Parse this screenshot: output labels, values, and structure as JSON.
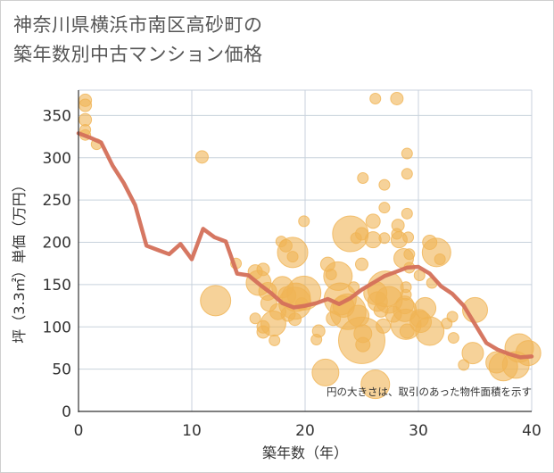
{
  "chart_data": {
    "type": "scatter",
    "title": "神奈川県横浜市南区高砂町の\n築年数別中古マンション価格",
    "xlabel": "築年数（年）",
    "ylabel": "坪（3.3㎡）単価（万円）",
    "xlim": [
      0,
      40
    ],
    "ylim": [
      0,
      380
    ],
    "xticks": [
      0,
      10,
      20,
      30,
      40
    ],
    "yticks": [
      0,
      50,
      100,
      150,
      200,
      250,
      300,
      350
    ],
    "grid": true,
    "note": "円の大きさは、取引のあった物件面積を示す",
    "colors": {
      "bubble": "#f0b455",
      "trend": "#d4705a",
      "grid": "#c8d2dc",
      "axis": "#333333"
    },
    "points": [
      {
        "x": 0.6,
        "y": 368,
        "s": 7
      },
      {
        "x": 0.6,
        "y": 362,
        "s": 7
      },
      {
        "x": 0.6,
        "y": 345,
        "s": 7
      },
      {
        "x": 0.6,
        "y": 333,
        "s": 6
      },
      {
        "x": 0.6,
        "y": 327,
        "s": 6
      },
      {
        "x": 1.6,
        "y": 316,
        "s": 6
      },
      {
        "x": 10.9,
        "y": 301,
        "s": 7
      },
      {
        "x": 12.1,
        "y": 131,
        "s": 17
      },
      {
        "x": 13.9,
        "y": 175,
        "s": 6
      },
      {
        "x": 15.6,
        "y": 165,
        "s": 8
      },
      {
        "x": 15.6,
        "y": 110,
        "s": 6
      },
      {
        "x": 15.9,
        "y": 152,
        "s": 14
      },
      {
        "x": 16.3,
        "y": 168,
        "s": 7
      },
      {
        "x": 16.3,
        "y": 100,
        "s": 7
      },
      {
        "x": 16.3,
        "y": 94,
        "s": 7
      },
      {
        "x": 16.7,
        "y": 142,
        "s": 10
      },
      {
        "x": 16.8,
        "y": 128,
        "s": 9
      },
      {
        "x": 17.2,
        "y": 104,
        "s": 14
      },
      {
        "x": 17.6,
        "y": 118,
        "s": 9
      },
      {
        "x": 17.3,
        "y": 84,
        "s": 6
      },
      {
        "x": 17.9,
        "y": 201,
        "s": 6
      },
      {
        "x": 18.3,
        "y": 196,
        "s": 7
      },
      {
        "x": 18.0,
        "y": 147,
        "s": 12
      },
      {
        "x": 18.4,
        "y": 137,
        "s": 10
      },
      {
        "x": 18.5,
        "y": 115,
        "s": 8
      },
      {
        "x": 18.9,
        "y": 188,
        "s": 17
      },
      {
        "x": 18.9,
        "y": 183,
        "s": 6
      },
      {
        "x": 19.2,
        "y": 135,
        "s": 16
      },
      {
        "x": 19.1,
        "y": 128,
        "s": 18
      },
      {
        "x": 19.7,
        "y": 127,
        "s": 7
      },
      {
        "x": 19.1,
        "y": 109,
        "s": 7
      },
      {
        "x": 19.9,
        "y": 140,
        "s": 19
      },
      {
        "x": 19.9,
        "y": 225,
        "s": 6
      },
      {
        "x": 21.0,
        "y": 85,
        "s": 6
      },
      {
        "x": 21.2,
        "y": 95,
        "s": 7
      },
      {
        "x": 21.8,
        "y": 46,
        "s": 15
      },
      {
        "x": 22.0,
        "y": 174,
        "s": 8
      },
      {
        "x": 22.3,
        "y": 162,
        "s": 6
      },
      {
        "x": 22.5,
        "y": 110,
        "s": 8
      },
      {
        "x": 22.9,
        "y": 160,
        "s": 16
      },
      {
        "x": 23.1,
        "y": 133,
        "s": 18
      },
      {
        "x": 23.4,
        "y": 124,
        "s": 12
      },
      {
        "x": 23.8,
        "y": 118,
        "s": 20
      },
      {
        "x": 24.0,
        "y": 210,
        "s": 20
      },
      {
        "x": 24.3,
        "y": 147,
        "s": 6
      },
      {
        "x": 24.5,
        "y": 205,
        "s": 6
      },
      {
        "x": 24.7,
        "y": 113,
        "s": 12
      },
      {
        "x": 25.1,
        "y": 92,
        "s": 10
      },
      {
        "x": 25.0,
        "y": 84,
        "s": 26
      },
      {
        "x": 25.1,
        "y": 79,
        "s": 8
      },
      {
        "x": 25.0,
        "y": 210,
        "s": 7
      },
      {
        "x": 25.0,
        "y": 174,
        "s": 7
      },
      {
        "x": 25.1,
        "y": 276,
        "s": 6
      },
      {
        "x": 26.0,
        "y": 225,
        "s": 8
      },
      {
        "x": 26.0,
        "y": 203,
        "s": 9
      },
      {
        "x": 26.2,
        "y": 370,
        "s": 6
      },
      {
        "x": 26.2,
        "y": 140,
        "s": 13
      },
      {
        "x": 26.4,
        "y": 130,
        "s": 11
      },
      {
        "x": 26.7,
        "y": 120,
        "s": 8
      },
      {
        "x": 26.9,
        "y": 101,
        "s": 8
      },
      {
        "x": 26.2,
        "y": 32,
        "s": 16
      },
      {
        "x": 27.0,
        "y": 268,
        "s": 6
      },
      {
        "x": 27.0,
        "y": 241,
        "s": 6
      },
      {
        "x": 27.0,
        "y": 205,
        "s": 6
      },
      {
        "x": 27.1,
        "y": 145,
        "s": 20
      },
      {
        "x": 27.4,
        "y": 132,
        "s": 15
      },
      {
        "x": 27.8,
        "y": 115,
        "s": 9
      },
      {
        "x": 28.1,
        "y": 370,
        "s": 7
      },
      {
        "x": 28.2,
        "y": 220,
        "s": 7
      },
      {
        "x": 28.1,
        "y": 210,
        "s": 6
      },
      {
        "x": 28.3,
        "y": 203,
        "s": 9
      },
      {
        "x": 28.7,
        "y": 181,
        "s": 11
      },
      {
        "x": 28.9,
        "y": 147,
        "s": 6
      },
      {
        "x": 28.9,
        "y": 138,
        "s": 6
      },
      {
        "x": 28.8,
        "y": 126,
        "s": 10
      },
      {
        "x": 28.8,
        "y": 120,
        "s": 13
      },
      {
        "x": 28.9,
        "y": 103,
        "s": 17
      },
      {
        "x": 29.0,
        "y": 95,
        "s": 8
      },
      {
        "x": 29.0,
        "y": 305,
        "s": 6
      },
      {
        "x": 29.0,
        "y": 281,
        "s": 6
      },
      {
        "x": 29.0,
        "y": 234,
        "s": 6
      },
      {
        "x": 29.1,
        "y": 206,
        "s": 6
      },
      {
        "x": 29.2,
        "y": 186,
        "s": 6
      },
      {
        "x": 29.2,
        "y": 170,
        "s": 6
      },
      {
        "x": 30.1,
        "y": 161,
        "s": 6
      },
      {
        "x": 30.1,
        "y": 110,
        "s": 10
      },
      {
        "x": 30.2,
        "y": 106,
        "s": 12
      },
      {
        "x": 30.6,
        "y": 122,
        "s": 12
      },
      {
        "x": 31.0,
        "y": 95,
        "s": 16
      },
      {
        "x": 31.0,
        "y": 200,
        "s": 8
      },
      {
        "x": 31.2,
        "y": 152,
        "s": 6
      },
      {
        "x": 31.6,
        "y": 188,
        "s": 16
      },
      {
        "x": 31.9,
        "y": 180,
        "s": 6
      },
      {
        "x": 32.5,
        "y": 104,
        "s": 6
      },
      {
        "x": 33.0,
        "y": 112,
        "s": 6
      },
      {
        "x": 33.1,
        "y": 87,
        "s": 6
      },
      {
        "x": 34.0,
        "y": 55,
        "s": 6
      },
      {
        "x": 34.8,
        "y": 69,
        "s": 12
      },
      {
        "x": 35.0,
        "y": 120,
        "s": 14
      },
      {
        "x": 36.9,
        "y": 58,
        "s": 12
      },
      {
        "x": 37.5,
        "y": 53,
        "s": 16
      },
      {
        "x": 38.6,
        "y": 55,
        "s": 15
      },
      {
        "x": 38.9,
        "y": 75,
        "s": 16
      },
      {
        "x": 39.7,
        "y": 69,
        "s": 14
      }
    ],
    "trend": [
      [
        0,
        329
      ],
      [
        1,
        324
      ],
      [
        2,
        318
      ],
      [
        3,
        291
      ],
      [
        4,
        270
      ],
      [
        5,
        244
      ],
      [
        6,
        196
      ],
      [
        7,
        191
      ],
      [
        8,
        186
      ],
      [
        9,
        198
      ],
      [
        10,
        180
      ],
      [
        11,
        216
      ],
      [
        12,
        206
      ],
      [
        13,
        201
      ],
      [
        14,
        163
      ],
      [
        15,
        161
      ],
      [
        16,
        150
      ],
      [
        17,
        140
      ],
      [
        18,
        128
      ],
      [
        19,
        123
      ],
      [
        20,
        125
      ],
      [
        21,
        128
      ],
      [
        22,
        133
      ],
      [
        23,
        127
      ],
      [
        24,
        134
      ],
      [
        25,
        144
      ],
      [
        26,
        152
      ],
      [
        27,
        160
      ],
      [
        28,
        165
      ],
      [
        29,
        170
      ],
      [
        30,
        171
      ],
      [
        31,
        163
      ],
      [
        32,
        148
      ],
      [
        33,
        139
      ],
      [
        34,
        125
      ],
      [
        35,
        103
      ],
      [
        36,
        81
      ],
      [
        37,
        73
      ],
      [
        38,
        68
      ],
      [
        39,
        64
      ],
      [
        40,
        65
      ]
    ]
  }
}
